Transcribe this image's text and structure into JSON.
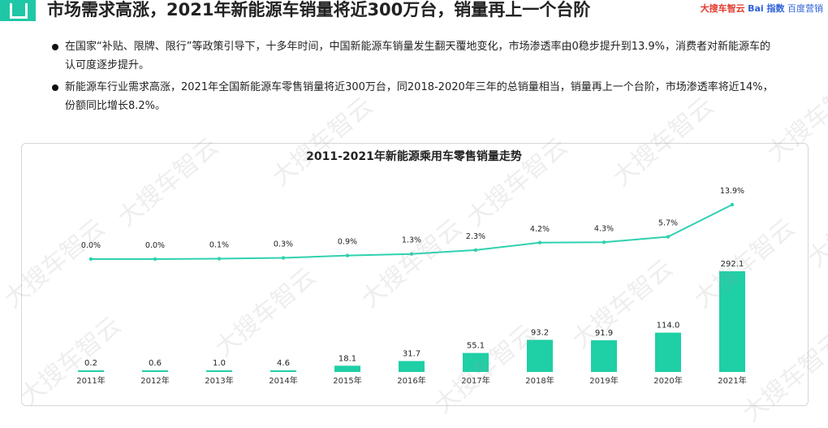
{
  "header": {
    "title": "市场需求高涨，2021年新能源车销量将近300万台，销量再上一个台阶",
    "brand_1": "大搜车智云",
    "brand_2": "Bai 指数",
    "brand_3": "百度营销"
  },
  "bullets": [
    "在国家“补贴、限牌、限行”等政策引导下，十多年时间，中国新能源车销量发生翻天覆地变化，市场渗透率由0稳步提升到13.9%，消费者对新能源车的认可度逐步提升。",
    "新能源车行业需求高涨，2021年全国新能源车零售销量将近300万台，同2018-2020年三年的总销量相当，销量再上一个台阶，市场渗透率将近14%，份额同比增长8.2%。"
  ],
  "watermark": "大搜车智云",
  "chart_data": {
    "type": "bar",
    "title": "2011-2021年新能源乘用车零售销量走势",
    "categories": [
      "2011年",
      "2012年",
      "2013年",
      "2014年",
      "2015年",
      "2016年",
      "2017年",
      "2018年",
      "2019年",
      "2020年",
      "2021年"
    ],
    "series": [
      {
        "type": "bar",
        "values": [
          0.2,
          0.6,
          1.0,
          4.6,
          18.1,
          31.7,
          55.1,
          93.2,
          91.9,
          114.0,
          292.1
        ],
        "labels": [
          "0.2",
          "0.6",
          "1.0",
          "4.6",
          "18.1",
          "31.7",
          "55.1",
          "93.2",
          "91.9",
          "114.0",
          "292.1"
        ]
      },
      {
        "type": "line",
        "values": [
          0.0,
          0.0,
          0.1,
          0.3,
          0.9,
          1.3,
          2.3,
          4.2,
          4.3,
          5.7,
          13.9
        ],
        "labels": [
          "0.0%",
          "0.0%",
          "0.1%",
          "0.3%",
          "0.9%",
          "1.3%",
          "2.3%",
          "4.2%",
          "4.3%",
          "5.7%",
          "13.9%"
        ]
      }
    ],
    "colors": {
      "bar": "#1fcfa6",
      "line": "#2fd1b0"
    },
    "grid": false,
    "legend": "none"
  }
}
